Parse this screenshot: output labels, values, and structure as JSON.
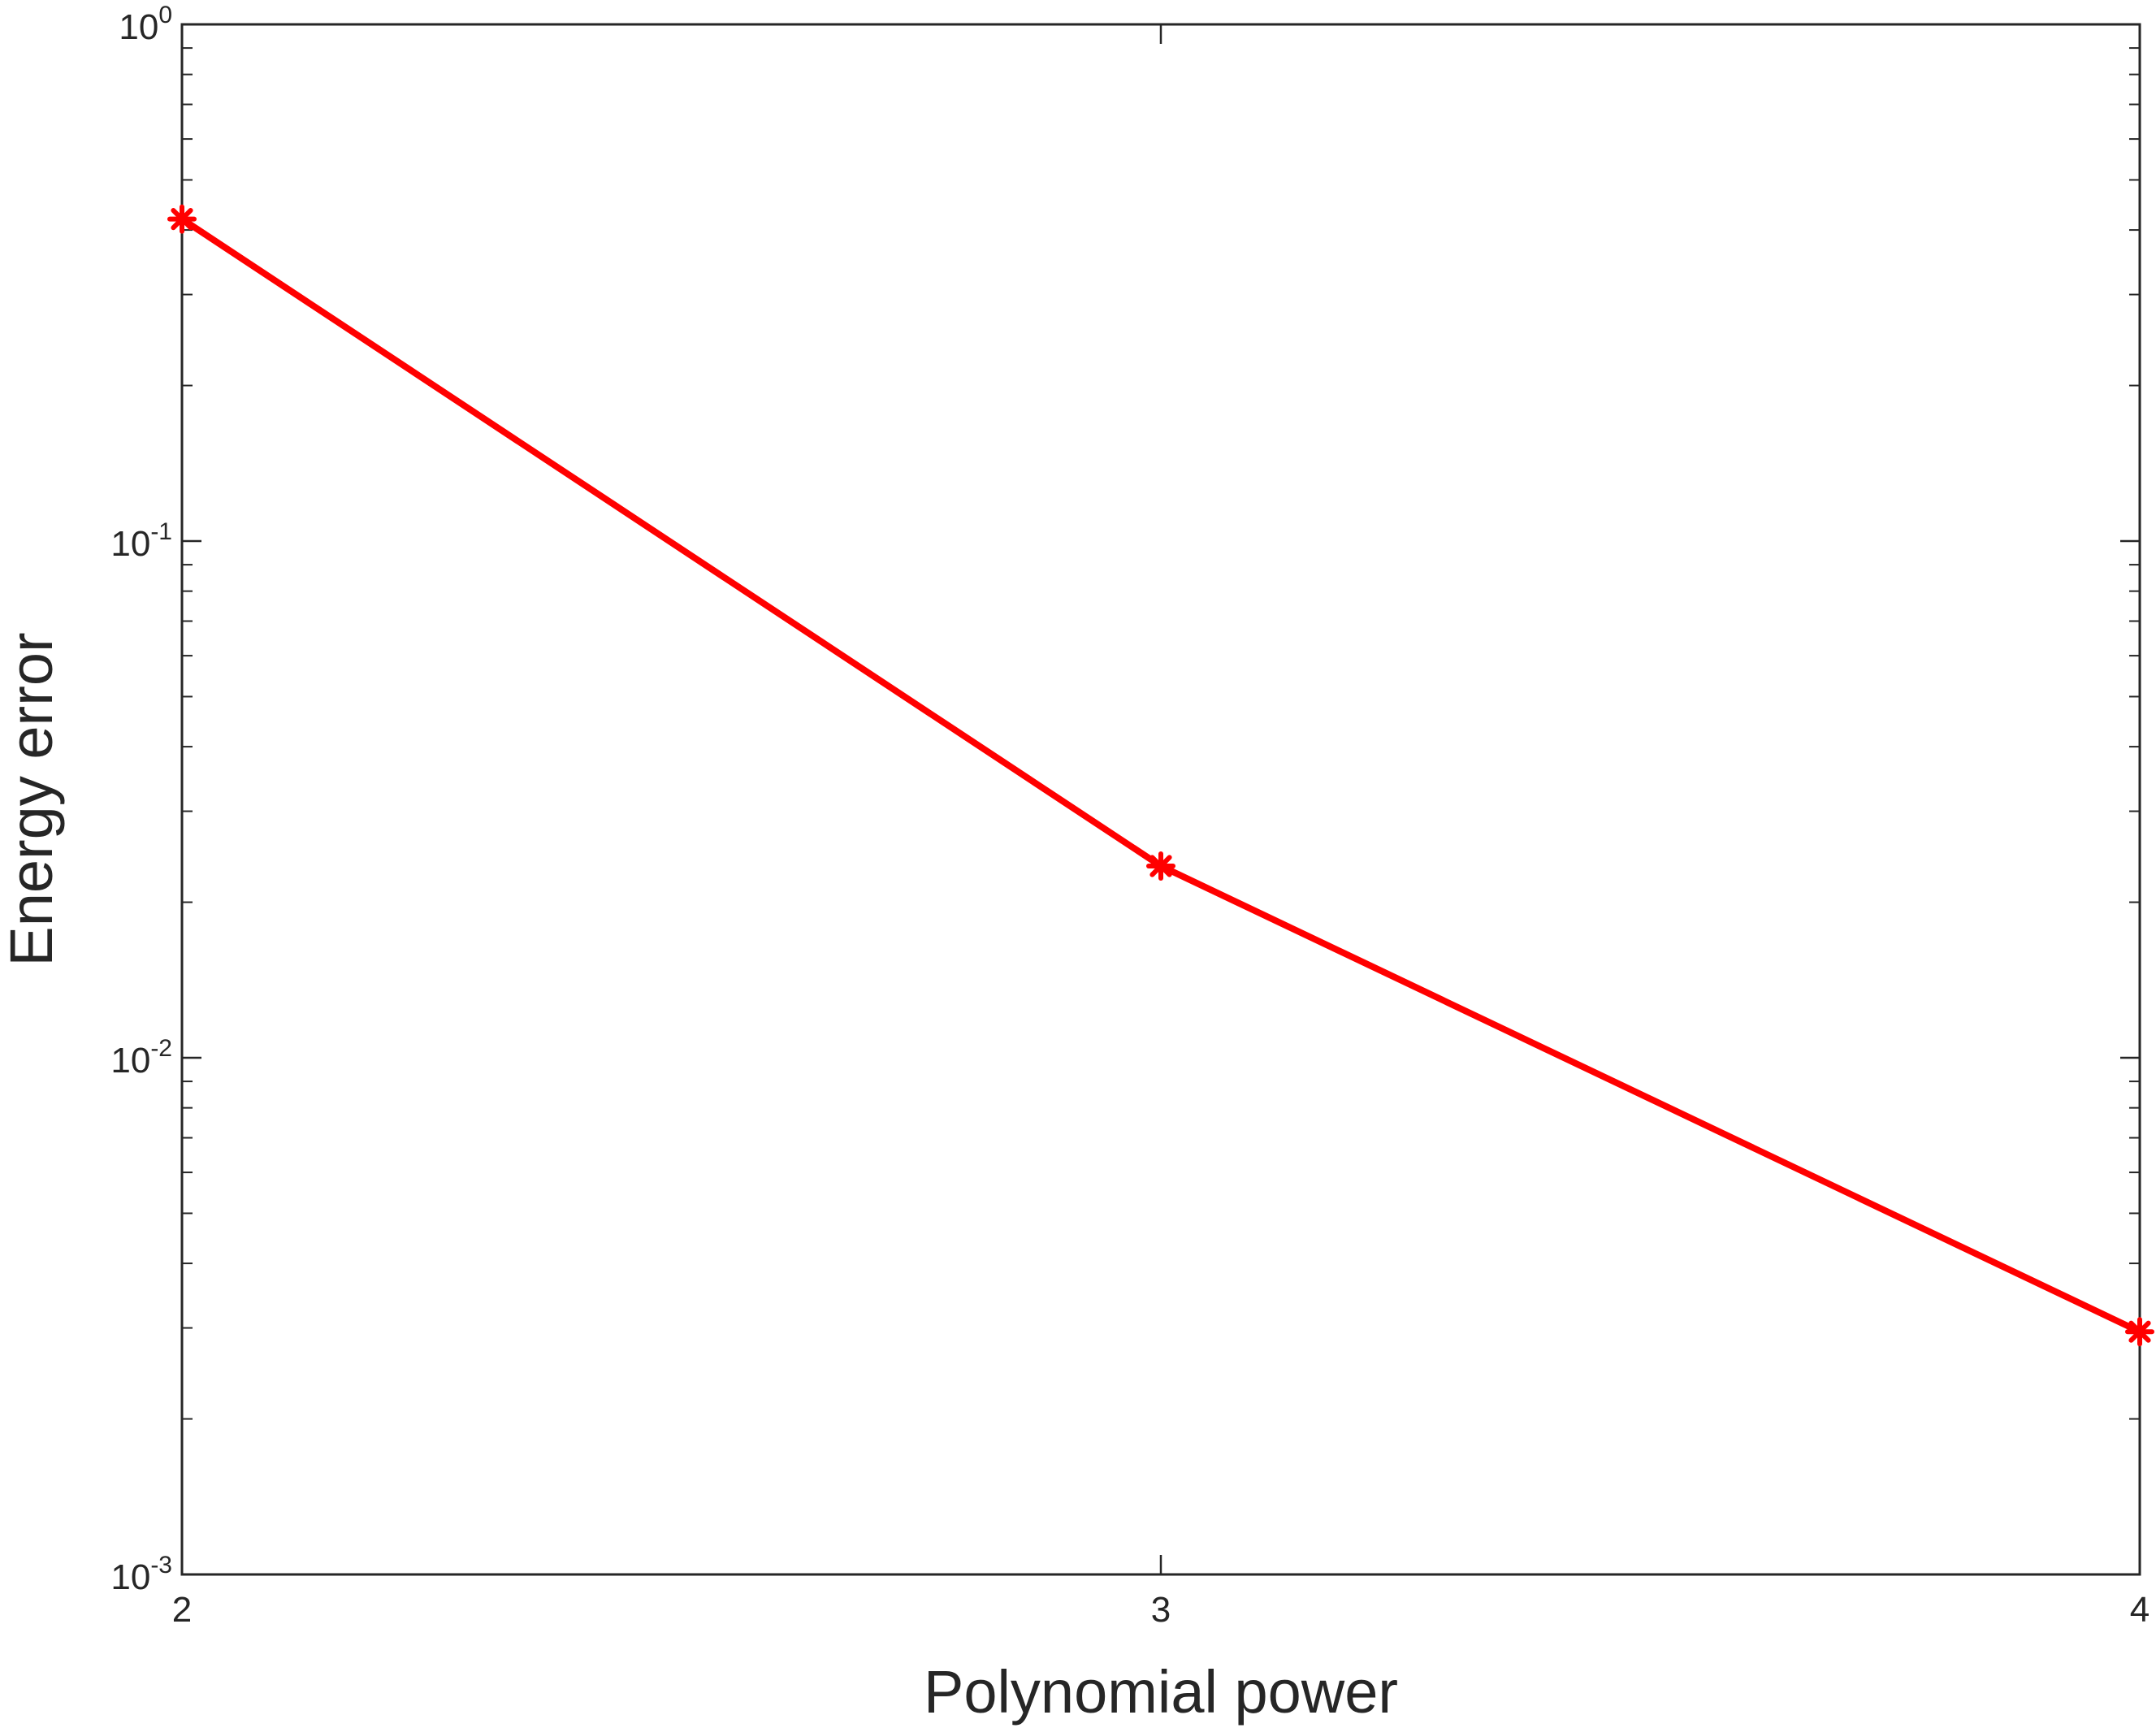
{
  "chart_data": {
    "type": "line",
    "title": "",
    "xlabel": "Polynomial power",
    "ylabel": "Energy error",
    "x": [
      2,
      3,
      4
    ],
    "series": [
      {
        "values": [
          0.42,
          0.0235,
          0.00295
        ],
        "color": "#ff0000",
        "marker": "asterisk"
      }
    ],
    "xlim": [
      2,
      4
    ],
    "ylim": [
      0.001,
      1
    ],
    "yscale": "log",
    "xticks": [
      2,
      3,
      4
    ],
    "xtick_labels": [
      "2",
      "3",
      "4"
    ],
    "yticks": [
      0.001,
      0.01,
      0.1,
      1
    ],
    "ytick_labels": [
      {
        "base": "10",
        "exp": "-3"
      },
      {
        "base": "10",
        "exp": "-2"
      },
      {
        "base": "10",
        "exp": "-1"
      },
      {
        "base": "10",
        "exp": "0"
      }
    ],
    "grid": false,
    "legend": "none"
  }
}
